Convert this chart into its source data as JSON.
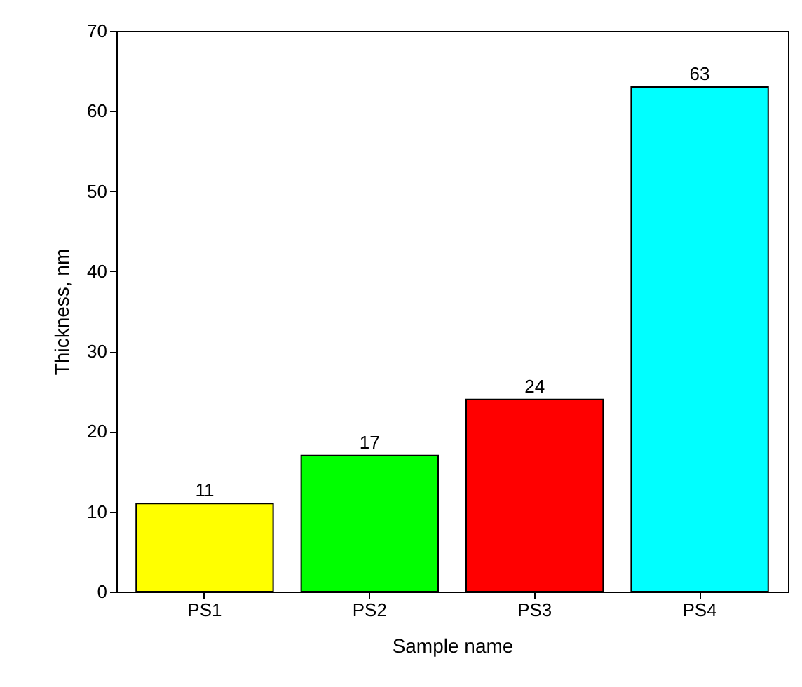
{
  "chart_data": {
    "type": "bar",
    "xlabel": "Sample name",
    "ylabel": "Thickness, nm",
    "categories": [
      "PS1",
      "PS2",
      "PS3",
      "PS4"
    ],
    "values": [
      11,
      17,
      24,
      63
    ],
    "colors": [
      "#ffff00",
      "#00ff00",
      "#ff0000",
      "#00ffff"
    ],
    "ylim": [
      0,
      70
    ],
    "yticks": [
      0,
      10,
      20,
      30,
      40,
      50,
      60,
      70
    ],
    "data_labels": true
  }
}
